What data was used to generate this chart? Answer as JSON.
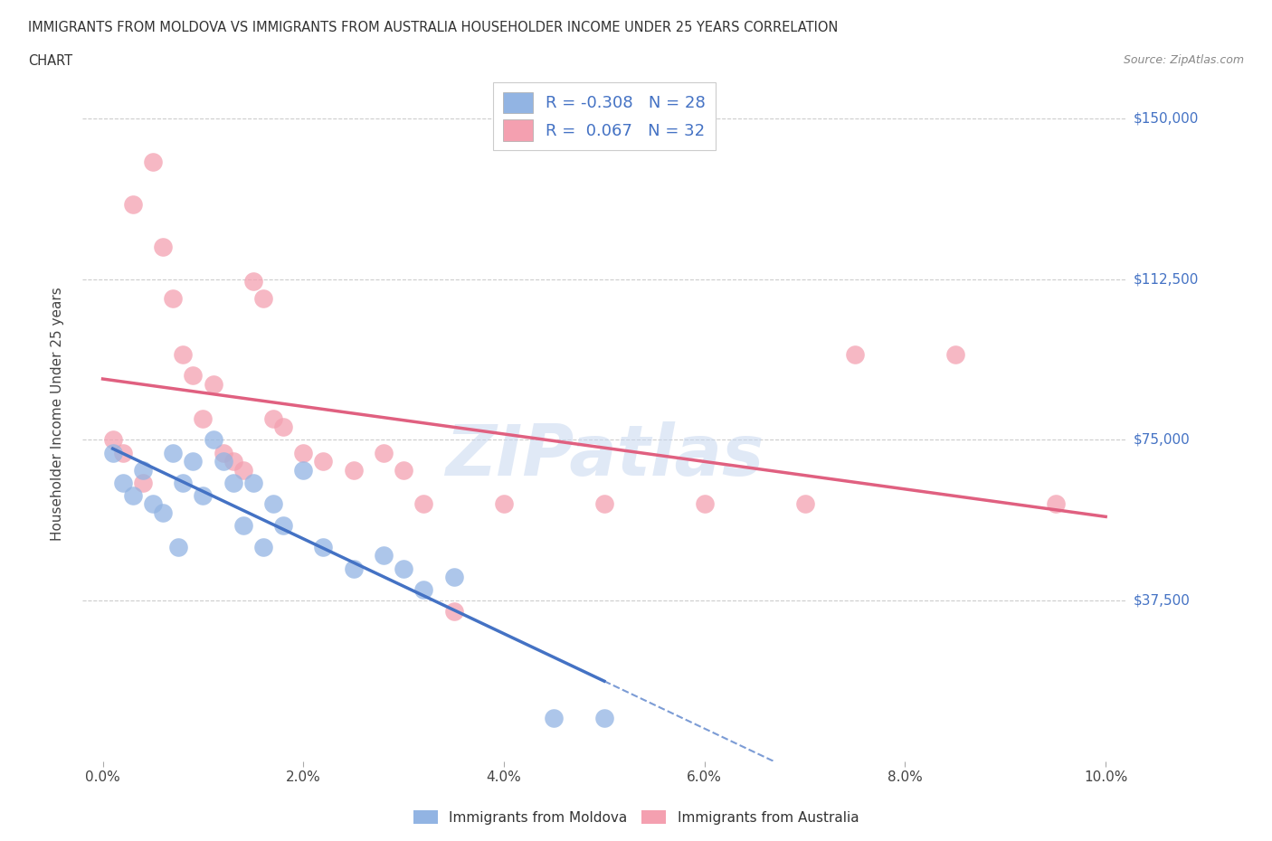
{
  "title_line1": "IMMIGRANTS FROM MOLDOVA VS IMMIGRANTS FROM AUSTRALIA HOUSEHOLDER INCOME UNDER 25 YEARS CORRELATION",
  "title_line2": "CHART",
  "source_text": "Source: ZipAtlas.com",
  "ylabel": "Householder Income Under 25 years",
  "xlabel_ticks": [
    "0.0%",
    "2.0%",
    "4.0%",
    "6.0%",
    "8.0%",
    "10.0%"
  ],
  "xlabel_vals": [
    0.0,
    0.02,
    0.04,
    0.06,
    0.08,
    0.1
  ],
  "ytick_labels": [
    "$37,500",
    "$75,000",
    "$112,500",
    "$150,000"
  ],
  "ytick_vals": [
    37500,
    75000,
    112500,
    150000
  ],
  "xlim": [
    -0.002,
    0.102
  ],
  "ylim": [
    0,
    162000
  ],
  "moldova_color": "#92b4e3",
  "australia_color": "#f4a0b0",
  "moldova_R": -0.308,
  "moldova_N": 28,
  "australia_R": 0.067,
  "australia_N": 32,
  "watermark": "ZIPatlas",
  "moldova_scatter_x": [
    0.001,
    0.002,
    0.003,
    0.004,
    0.005,
    0.006,
    0.007,
    0.0075,
    0.008,
    0.009,
    0.01,
    0.011,
    0.012,
    0.013,
    0.014,
    0.015,
    0.016,
    0.017,
    0.018,
    0.02,
    0.022,
    0.025,
    0.028,
    0.03,
    0.032,
    0.035,
    0.045,
    0.05
  ],
  "moldova_scatter_y": [
    72000,
    65000,
    62000,
    68000,
    60000,
    58000,
    72000,
    50000,
    65000,
    70000,
    62000,
    75000,
    70000,
    65000,
    55000,
    65000,
    50000,
    60000,
    55000,
    68000,
    50000,
    45000,
    48000,
    45000,
    40000,
    43000,
    10000,
    10000
  ],
  "australia_scatter_x": [
    0.001,
    0.002,
    0.003,
    0.004,
    0.005,
    0.006,
    0.007,
    0.008,
    0.009,
    0.01,
    0.011,
    0.012,
    0.013,
    0.014,
    0.015,
    0.016,
    0.017,
    0.018,
    0.02,
    0.022,
    0.025,
    0.028,
    0.03,
    0.032,
    0.035,
    0.04,
    0.05,
    0.06,
    0.07,
    0.075,
    0.085,
    0.095
  ],
  "australia_scatter_y": [
    75000,
    72000,
    130000,
    65000,
    140000,
    120000,
    108000,
    95000,
    90000,
    80000,
    88000,
    72000,
    70000,
    68000,
    112000,
    108000,
    80000,
    78000,
    72000,
    70000,
    68000,
    72000,
    68000,
    60000,
    35000,
    60000,
    60000,
    60000,
    60000,
    95000,
    95000,
    60000
  ],
  "grid_color": "#cccccc",
  "hgrid_vals": [
    37500,
    75000,
    112500,
    150000
  ],
  "title_color": "#333333",
  "axis_color": "#4472c4",
  "legend_R_color": "#4472c4",
  "mol_line_color": "#4472c4",
  "aus_line_color": "#e06080"
}
